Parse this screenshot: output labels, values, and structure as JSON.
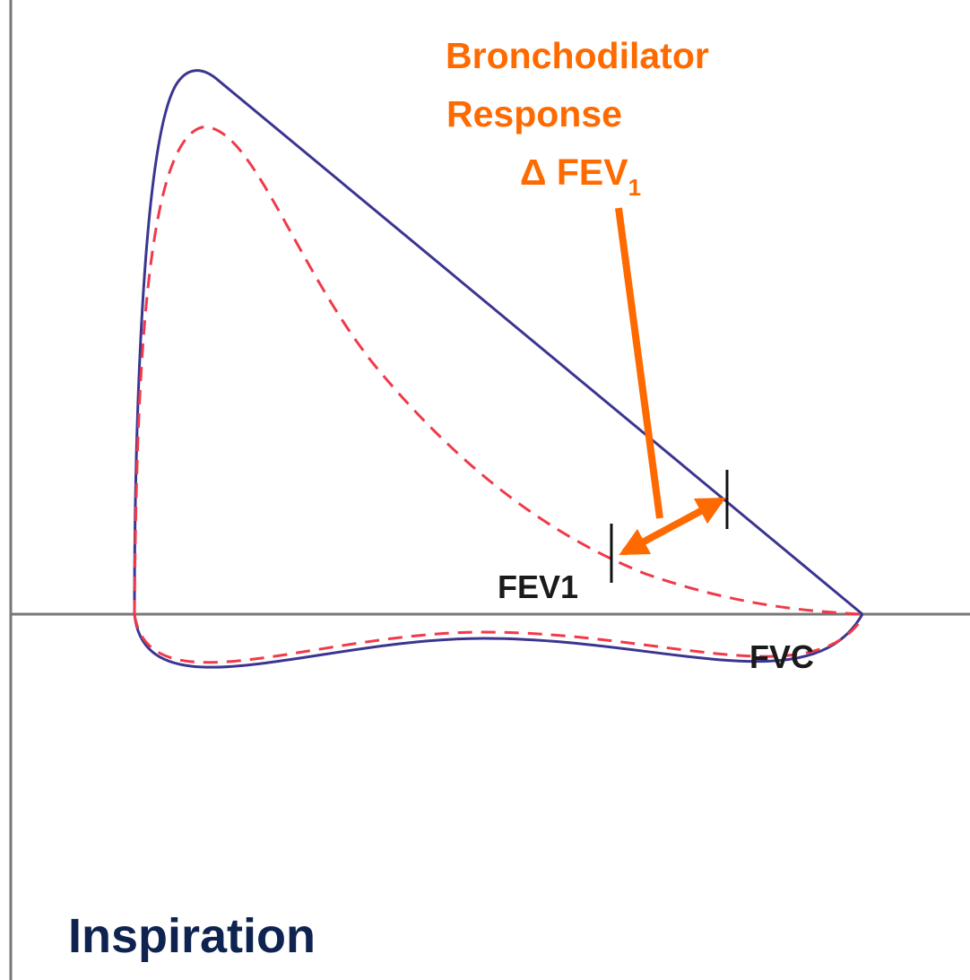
{
  "annotation": {
    "line1": "Bronchodilator",
    "line2": "Response",
    "delta": "Δ FEV",
    "delta_subscript": "1"
  },
  "labels": {
    "fev1": "FEV1",
    "fvc": "FVC"
  },
  "footer": "Inspiration"
}
